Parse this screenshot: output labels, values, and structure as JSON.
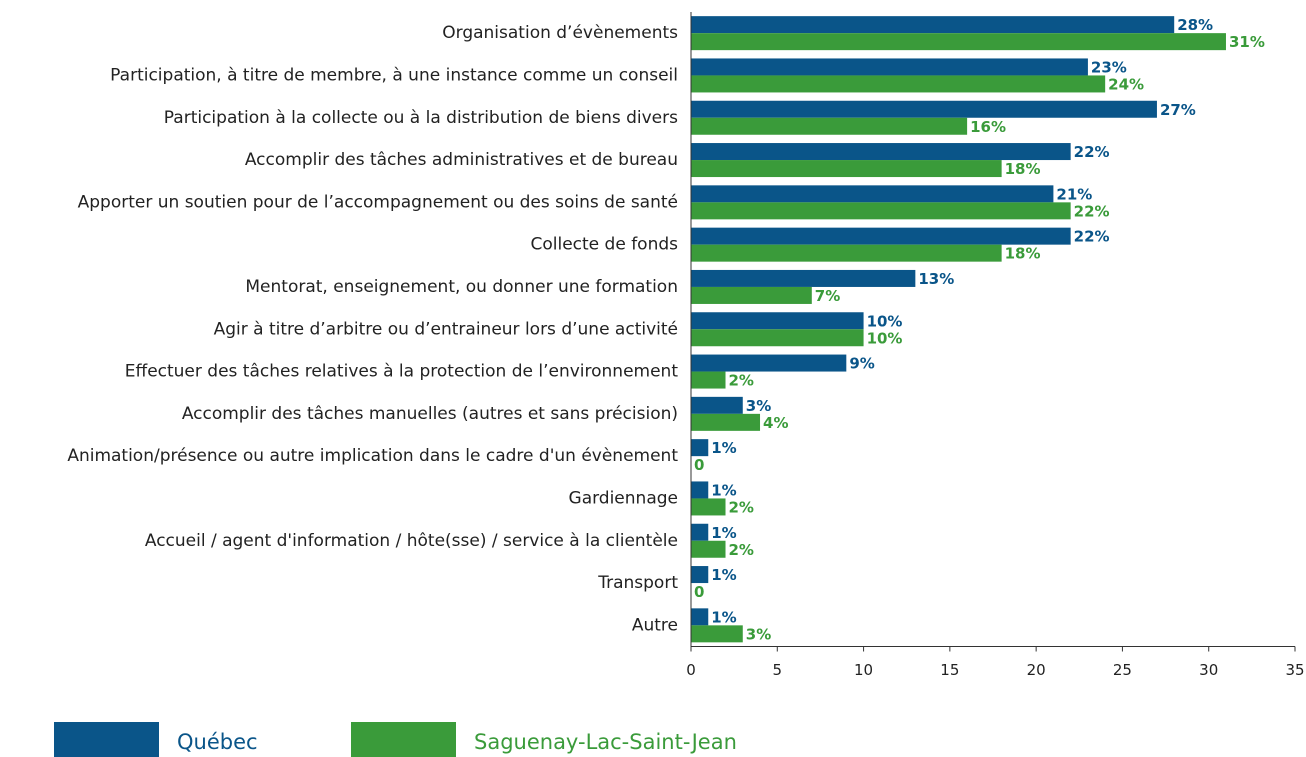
{
  "chart_data": {
    "type": "bar",
    "orientation": "horizontal",
    "categories": [
      "Organisation d’évènements",
      "Participation, à titre de membre, à une instance comme un conseil",
      "Participation à la collecte ou à la distribution de biens divers",
      "Accomplir des tâches administratives et de bureau",
      "Apporter un soutien pour de l’accompagnement ou des soins de santé",
      "Collecte de fonds",
      "Mentorat, enseignement, ou donner une formation",
      "Agir à titre d’arbitre ou d’entraineur lors d’une activité",
      "Effectuer des tâches relatives à la protection de l’environnement",
      "Accomplir des tâches manuelles (autres et sans précision)",
      "Animation/présence ou autre implication dans le cadre d'un évènement",
      "Gardiennage",
      "Accueil / agent d'information / hôte(sse) / service à la clientèle",
      "Transport",
      "Autre"
    ],
    "series": [
      {
        "name": "Québec",
        "color": "#0a5589",
        "values": [
          28,
          23,
          27,
          22,
          21,
          22,
          13,
          10,
          9,
          3,
          1,
          1,
          1,
          1,
          1
        ],
        "value_labels": [
          "28%",
          "23%",
          "27%",
          "22%",
          "21%",
          "22%",
          "13%",
          "10%",
          "9%",
          "3%",
          "1%",
          "1%",
          "1%",
          "1%",
          "1%"
        ]
      },
      {
        "name": "Saguenay-Lac-Saint-Jean",
        "color": "#3a9b3a",
        "values": [
          31,
          24,
          16,
          18,
          22,
          18,
          7,
          10,
          2,
          4,
          0,
          2,
          2,
          0,
          3
        ],
        "value_labels": [
          "31%",
          "24%",
          "16%",
          "18%",
          "22%",
          "18%",
          "7%",
          "10%",
          "2%",
          "4%",
          "0",
          "2%",
          "2%",
          "0",
          "3%"
        ]
      }
    ],
    "xlim": [
      0,
      35
    ],
    "xticks": [
      0,
      5,
      10,
      15,
      20,
      25,
      30,
      35
    ],
    "grid": false,
    "legend": "bottom"
  }
}
